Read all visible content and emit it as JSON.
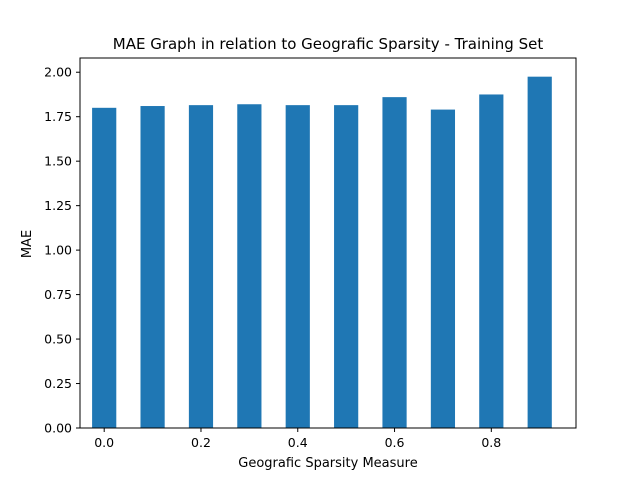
{
  "chart_data": {
    "type": "bar",
    "title": "MAE Graph in relation to Geografic Sparsity - Training Set",
    "xlabel": "Geografic Sparsity Measure",
    "ylabel": "MAE",
    "categories": [
      0.0,
      0.1,
      0.2,
      0.3,
      0.4,
      0.5,
      0.6,
      0.7,
      0.8,
      0.9
    ],
    "values": [
      1.8,
      1.81,
      1.815,
      1.82,
      1.815,
      1.815,
      1.86,
      1.79,
      1.875,
      1.975
    ],
    "bar_width": 0.05,
    "xlim": [
      -0.05,
      0.975
    ],
    "ylim": [
      0,
      2.08
    ],
    "xticks": [
      0.0,
      0.2,
      0.4,
      0.6,
      0.8
    ],
    "xtick_labels": [
      "0.0",
      "0.2",
      "0.4",
      "0.6",
      "0.8"
    ],
    "yticks": [
      0.0,
      0.25,
      0.5,
      0.75,
      1.0,
      1.25,
      1.5,
      1.75,
      2.0
    ],
    "ytick_labels": [
      "0.00",
      "0.25",
      "0.50",
      "0.75",
      "1.00",
      "1.25",
      "1.50",
      "1.75",
      "2.00"
    ],
    "bar_color": "#1f77b4",
    "grid": false,
    "legend": "none"
  }
}
